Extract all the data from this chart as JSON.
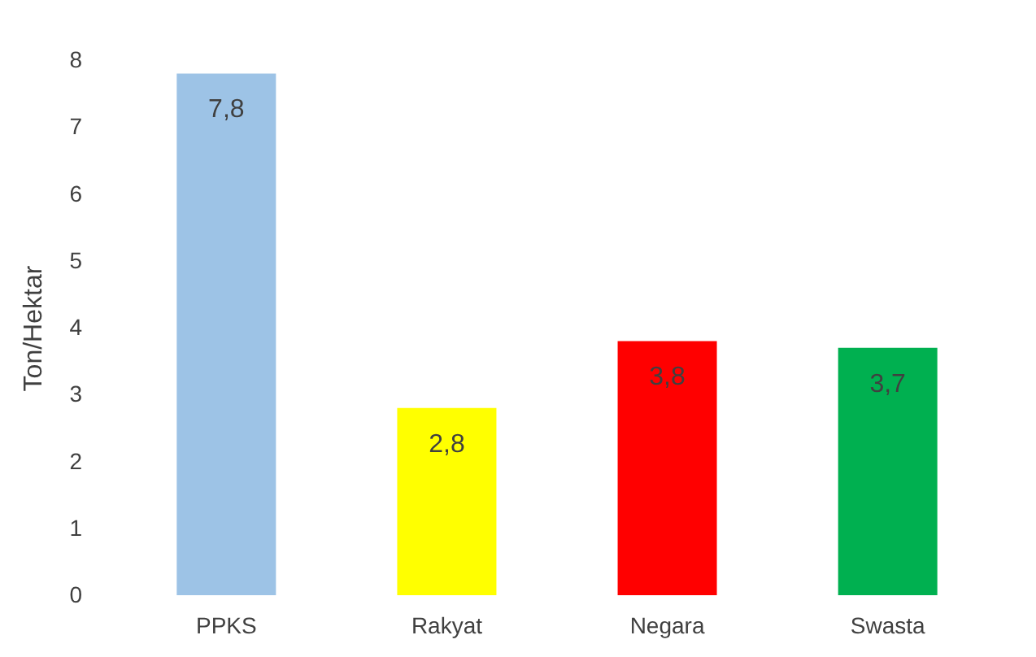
{
  "chart_data": {
    "type": "bar",
    "ylabel": "Ton/Hektar",
    "categories": [
      "PPKS",
      "Rakyat",
      "Negara",
      "Swasta"
    ],
    "values": [
      7.8,
      2.8,
      3.8,
      3.7
    ],
    "colors": [
      "#9dc3e6",
      "#ffff00",
      "#ff0000",
      "#00b050"
    ],
    "value_labels": [
      "7,8",
      "2,8",
      "3,8",
      "3,7"
    ],
    "ylim": [
      0,
      8
    ],
    "yticks": [
      0,
      1,
      2,
      3,
      4,
      5,
      6,
      7,
      8
    ],
    "grid": false
  }
}
